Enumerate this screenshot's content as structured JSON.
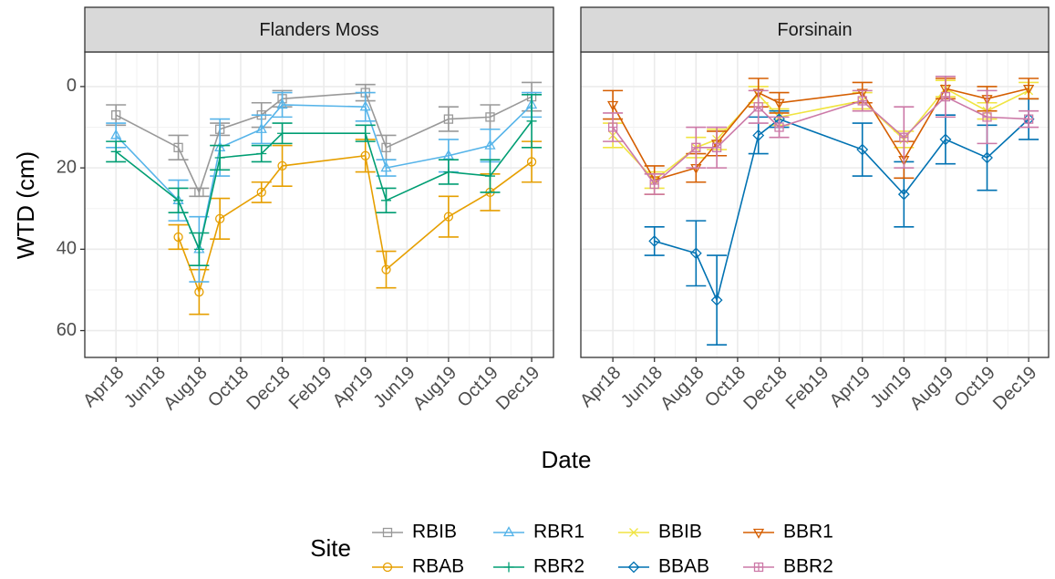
{
  "y_label": "WTD (cm)",
  "x_label": "Date",
  "legend_title": "Site",
  "chart_data": [
    {
      "type": "line",
      "title": "Flanders Moss",
      "x": [
        3,
        6,
        7,
        8,
        10,
        11,
        15,
        16,
        19,
        21,
        23
      ],
      "xlim": [
        1.5,
        24.05
      ],
      "xticks": [
        {
          "value": 3,
          "label": "Apr18"
        },
        {
          "value": 5,
          "label": "Jun18"
        },
        {
          "value": 7,
          "label": "Aug18"
        },
        {
          "value": 9,
          "label": "Oct18"
        },
        {
          "value": 11,
          "label": "Dec18"
        },
        {
          "value": 13,
          "label": "Feb19"
        },
        {
          "value": 15,
          "label": "Apr19"
        },
        {
          "value": 17,
          "label": "Jun19"
        },
        {
          "value": 19,
          "label": "Aug19"
        },
        {
          "value": 21,
          "label": "Oct19"
        },
        {
          "value": 23,
          "label": "Dec19"
        }
      ],
      "ylim": [
        66.6,
        -8.5
      ],
      "yticks": [
        0,
        20,
        40,
        60
      ],
      "grid": true,
      "series": [
        {
          "name": "RBIB",
          "color": "#999999",
          "marker": "square",
          "values": [
            7,
            15,
            26,
            10.5,
            7,
            3,
            1.5,
            15,
            8,
            7.5,
            2.5
          ],
          "errors": [
            2.5,
            3,
            1,
            1.5,
            3,
            2,
            2,
            3,
            3,
            3,
            3.5
          ]
        },
        {
          "name": "RBAB",
          "color": "#E69F00",
          "marker": "circle",
          "values": [
            null,
            37,
            50.5,
            32.5,
            26,
            19.5,
            17,
            45,
            32,
            26,
            18.5
          ],
          "errors": [
            null,
            3,
            5.5,
            5,
            2.5,
            5,
            4,
            4.5,
            5,
            4.5,
            5
          ]
        },
        {
          "name": "RBR1",
          "color": "#56B4E9",
          "marker": "triangle",
          "values": [
            12,
            28,
            40,
            15,
            10.5,
            4.5,
            5,
            20,
            17,
            14.5,
            4.5
          ],
          "errors": [
            3,
            5,
            8,
            7,
            3.5,
            3,
            3.5,
            2,
            4,
            4,
            3
          ]
        },
        {
          "name": "RBR2",
          "color": "#009E73",
          "marker": "plus",
          "values": [
            16,
            28,
            40,
            17.5,
            16.5,
            11.5,
            11.5,
            28,
            21,
            22,
            8.5
          ],
          "errors": [
            2.5,
            3,
            4,
            3,
            2,
            2.5,
            2,
            3,
            3,
            4,
            6.5
          ]
        }
      ]
    },
    {
      "type": "line",
      "title": "Forsinain",
      "x": [
        3,
        5,
        7,
        8,
        10,
        11,
        15,
        17,
        19,
        21,
        23
      ],
      "xlim": [
        1.46,
        23.96
      ],
      "xticks": [
        {
          "value": 3,
          "label": "Apr18"
        },
        {
          "value": 5,
          "label": "Jun18"
        },
        {
          "value": 7,
          "label": "Aug18"
        },
        {
          "value": 9,
          "label": "Oct18"
        },
        {
          "value": 11,
          "label": "Dec18"
        },
        {
          "value": 13,
          "label": "Feb19"
        },
        {
          "value": 15,
          "label": "Apr19"
        },
        {
          "value": 17,
          "label": "Jun19"
        },
        {
          "value": 19,
          "label": "Aug19"
        },
        {
          "value": 21,
          "label": "Oct19"
        },
        {
          "value": 23,
          "label": "Dec19"
        }
      ],
      "ylim": [
        66.6,
        -8.5
      ],
      "yticks": [
        0,
        20,
        40,
        60
      ],
      "grid": true,
      "series": [
        {
          "name": "BBIB",
          "color": "#F0E442",
          "marker": "x",
          "values": [
            12,
            23,
            15,
            13,
            2,
            7.5,
            3.5,
            13,
            0.5,
            6,
            1
          ],
          "errors": [
            3,
            2,
            2.5,
            2.5,
            2,
            2,
            2,
            2,
            2,
            2,
            2
          ]
        },
        {
          "name": "BBAB",
          "color": "#0072B2",
          "marker": "diamond",
          "values": [
            null,
            38,
            41,
            52.5,
            12,
            8,
            15.5,
            26.5,
            13,
            17.5,
            8
          ],
          "errors": [
            null,
            3.5,
            8,
            11,
            4.5,
            2,
            6.5,
            8,
            6,
            8,
            5
          ]
        },
        {
          "name": "BBR1",
          "color": "#D55E00",
          "marker": "down-triangle",
          "values": [
            4.5,
            23,
            20,
            14,
            1.5,
            4,
            1.5,
            18,
            0.5,
            3,
            0.5
          ],
          "errors": [
            3.5,
            3.5,
            3.5,
            3,
            3.5,
            2.5,
            2.5,
            4.5,
            2.5,
            3,
            2.5
          ]
        },
        {
          "name": "BBR2",
          "color": "#CC79A7",
          "marker": "square-plus",
          "values": [
            10,
            24,
            15,
            15,
            5,
            10,
            3.5,
            12.5,
            2.5,
            7.5,
            8
          ],
          "errors": [
            3.5,
            2.5,
            5,
            5,
            4,
            2.5,
            2.5,
            7.5,
            5,
            6.5,
            2
          ]
        }
      ]
    }
  ]
}
